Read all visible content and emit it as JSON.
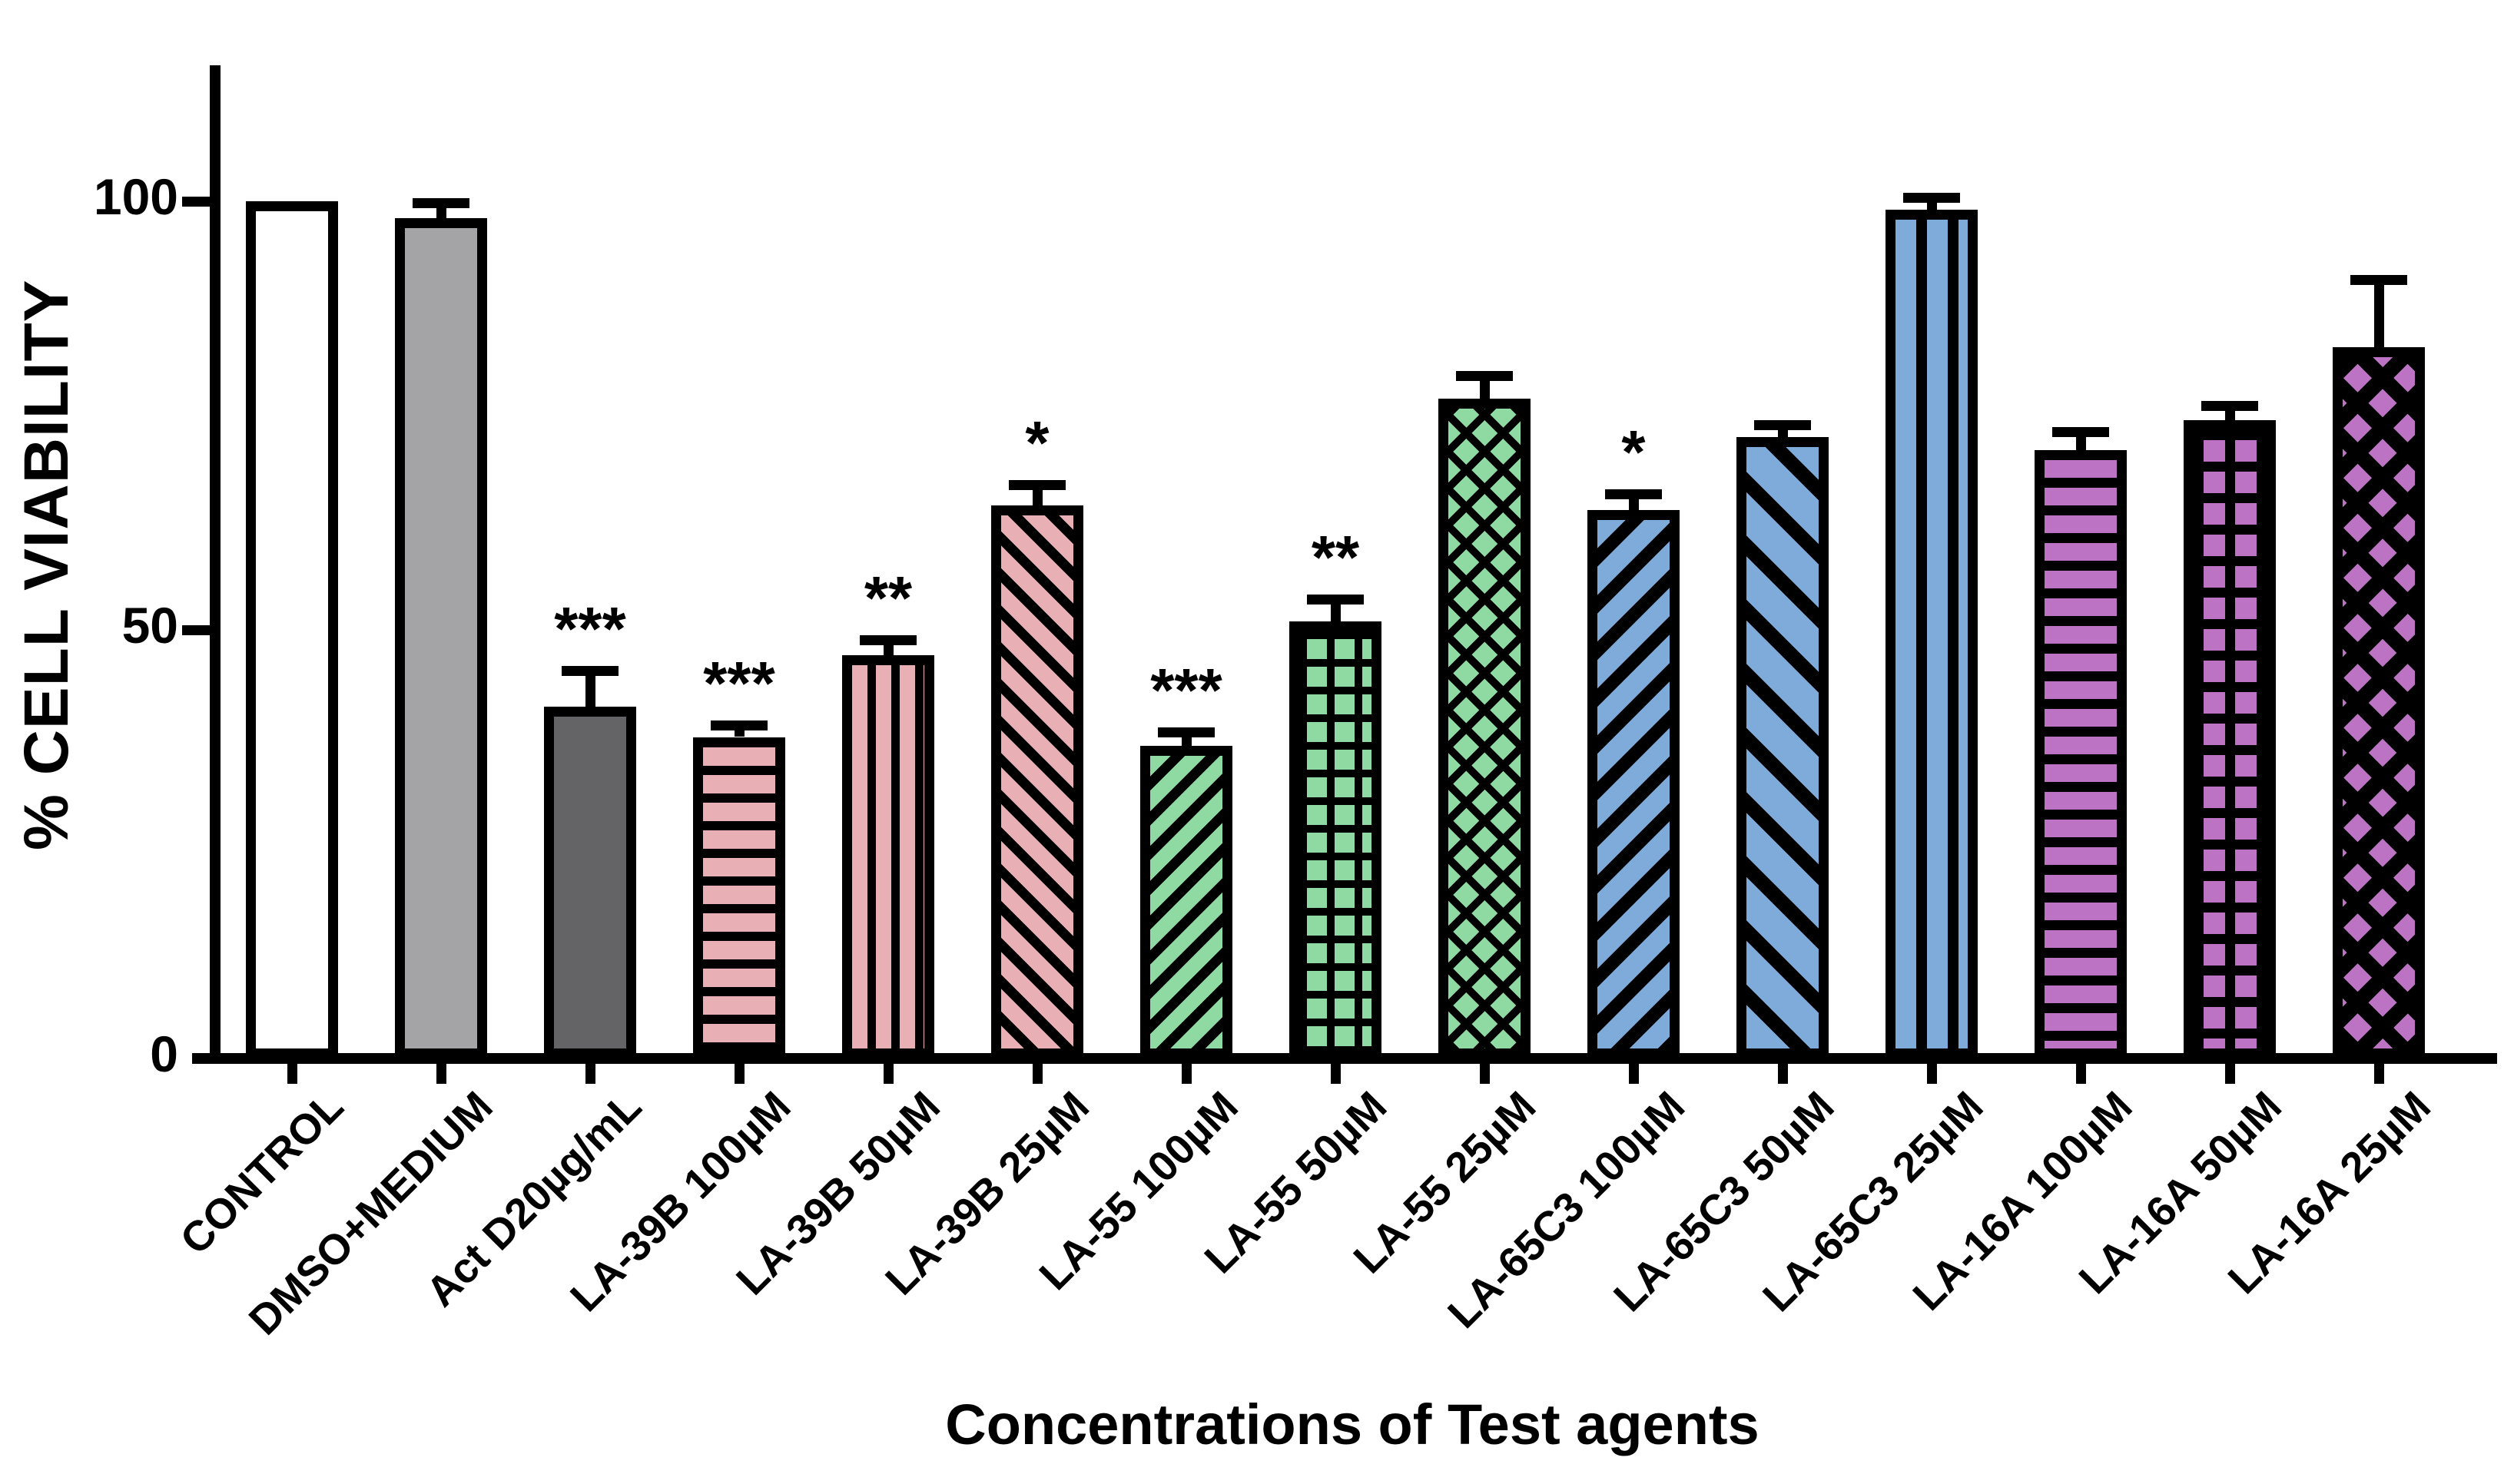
{
  "chart_data": {
    "type": "bar",
    "title": "",
    "xlabel": "Concentrations of Test agents",
    "ylabel": "% CELL VIABILITY",
    "ylim": [
      0,
      118
    ],
    "grid": false,
    "legend": "none",
    "yticks": [
      {
        "label": "0",
        "value": 0
      },
      {
        "label": "50",
        "value": 50
      },
      {
        "label": "100",
        "value": 100
      }
    ],
    "categories": [
      "CONTROL",
      "DMSO+MEDIUM",
      "Act D20µg/mL",
      "LA-39B 100µM",
      "LA-39B 50µM",
      "LA-39B 25µM",
      "LA-55 100µM",
      "LA-55 50µM",
      "LA-55 25µM",
      "LA-65C3 100µM",
      "LA-65C3 50µM",
      "LA-65C3 25µM",
      "LA-16A 100µM",
      "LA-16A 50µM",
      "LA-16A 25µM"
    ],
    "values": [
      100,
      98,
      41,
      37.5,
      47,
      64.5,
      36.5,
      51,
      77,
      64,
      72.5,
      99,
      71,
      74.5,
      83
    ],
    "errors": [
      0,
      1.2,
      3.6,
      0.8,
      1.2,
      1.8,
      1.0,
      2.0,
      2.0,
      1.2,
      0.8,
      0.8,
      1.5,
      1.0,
      7.2
    ],
    "bars": [
      {
        "label": "CONTROL",
        "value": 100,
        "error": 0,
        "sig": "",
        "pattern": "white"
      },
      {
        "label": "DMSO+MEDIUM",
        "value": 98,
        "error": 1.2,
        "sig": "",
        "pattern": "gray"
      },
      {
        "label": "Act D20µg/mL",
        "value": 41,
        "error": 3.6,
        "sig": "***",
        "pattern": "darkgray"
      },
      {
        "label": "LA-39B 100µM",
        "value": 37.5,
        "error": 0.8,
        "sig": "***",
        "pattern": "pink-h"
      },
      {
        "label": "LA-39B 50µM",
        "value": 47,
        "error": 1.2,
        "sig": "**",
        "pattern": "pink-v"
      },
      {
        "label": "LA-39B 25µM",
        "value": 64.5,
        "error": 1.8,
        "sig": "*",
        "pattern": "pink-diag"
      },
      {
        "label": "LA-55 100µM",
        "value": 36.5,
        "error": 1.0,
        "sig": "***",
        "pattern": "green-diag"
      },
      {
        "label": "LA-55 50µM",
        "value": 51,
        "error": 2.0,
        "sig": "**",
        "pattern": "green-grid"
      },
      {
        "label": "LA-55 25µM",
        "value": 77,
        "error": 2.0,
        "sig": "",
        "pattern": "green-weave"
      },
      {
        "label": "LA-65C3 100µM",
        "value": 64,
        "error": 1.2,
        "sig": "*",
        "pattern": "blue-diag"
      },
      {
        "label": "LA-65C3 50µM",
        "value": 72.5,
        "error": 0.8,
        "sig": "",
        "pattern": "blue-diag-wide"
      },
      {
        "label": "LA-65C3 25µM",
        "value": 99,
        "error": 0.8,
        "sig": "",
        "pattern": "blue-v"
      },
      {
        "label": "LA-16A 100µM",
        "value": 71,
        "error": 1.5,
        "sig": "",
        "pattern": "purple-h"
      },
      {
        "label": "LA-16A 50µM",
        "value": 74.5,
        "error": 1.0,
        "sig": "",
        "pattern": "purple-grid"
      },
      {
        "label": "LA-16A 25µM",
        "value": 83,
        "error": 7.2,
        "sig": "",
        "pattern": "purple-lattice"
      }
    ],
    "colors": {
      "white": "#FFFFFF",
      "gray": "#A4A4A6",
      "darkgray": "#646466",
      "pink": "#E8AFB4",
      "green": "#8FD9A3",
      "blue": "#7FABDB",
      "purple": "#BD73C4",
      "axis": "#000000"
    }
  }
}
